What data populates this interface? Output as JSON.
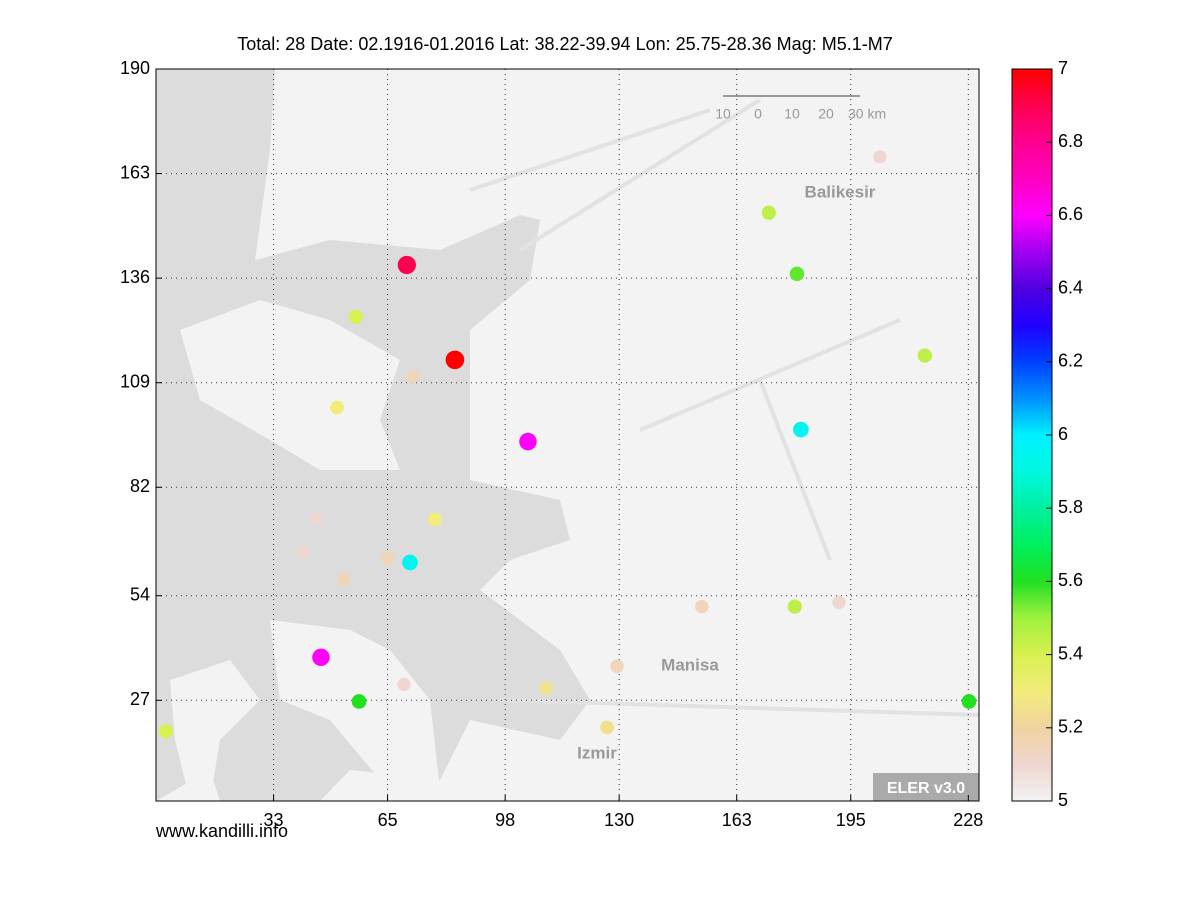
{
  "chart_data": {
    "type": "scatter",
    "title": "Total: 28  Date: 02.1916-01.2016 Lat: 38.22-39.94 Lon: 25.75-28.36 Mag: M5.1-M7",
    "source": "www.kandilli.info",
    "badge": "ELER v3.0",
    "place_labels": [
      "Balikesir",
      "Manisa",
      "Izmir"
    ],
    "scale_labels": [
      "10",
      "0",
      "10",
      "20",
      "30 km"
    ],
    "x": [
      70.4,
      56.1,
      83.9,
      72.1,
      50.8,
      104.4,
      44.9,
      78.3,
      41.3,
      65.1,
      71.3,
      52.8,
      46.3,
      69.6,
      57,
      2.8,
      109.5,
      126.6,
      129.4,
      153.2,
      179.3,
      191.7,
      228.2,
      181,
      215.8,
      179.9,
      172,
      203.2
    ],
    "y": [
      139.4,
      126,
      114.9,
      110.6,
      102.6,
      93.8,
      74.2,
      73.7,
      65.2,
      63.6,
      62.6,
      58.2,
      38.1,
      31.1,
      26.7,
      19,
      30.1,
      20,
      35.8,
      51.2,
      51.2,
      52.3,
      26.7,
      96.9,
      116,
      137.1,
      152.9,
      167.3
    ],
    "magnitude": [
      6.9,
      5.4,
      7,
      5.15,
      5.3,
      6.6,
      5.1,
      5.3,
      5.1,
      5.15,
      5.95,
      5.15,
      6.6,
      5.1,
      5.6,
      5.4,
      5.25,
      5.25,
      5.15,
      5.15,
      5.45,
      5.1,
      5.6,
      5.95,
      5.45,
      5.55,
      5.45,
      5.1
    ],
    "xlim": [
      0,
      231
    ],
    "ylim": [
      1,
      190
    ],
    "xticks": [
      33,
      65,
      98,
      130,
      163,
      195,
      228
    ],
    "yticks": [
      27,
      54,
      82,
      109,
      136,
      163,
      190
    ],
    "grid": true,
    "colorbar": {
      "lim": [
        5,
        7
      ],
      "ticks": [
        5,
        5.2,
        5.4,
        5.6,
        5.8,
        6,
        6.2,
        6.4,
        6.6,
        6.8,
        7
      ],
      "colormap": [
        "#f2f2f2",
        "#efd6d0",
        "#f0d3a0",
        "#f2ec7a",
        "#d8f050",
        "#a0f040",
        "#20e020",
        "#00f060",
        "#00f0a0",
        "#00f8e0",
        "#00f0ff",
        "#0090ff",
        "#0040ff",
        "#2000ff",
        "#5000e0",
        "#a000f0",
        "#ff00ff",
        "#ff00c0",
        "#ff0090",
        "#ff0050",
        "#ff0000"
      ]
    }
  }
}
